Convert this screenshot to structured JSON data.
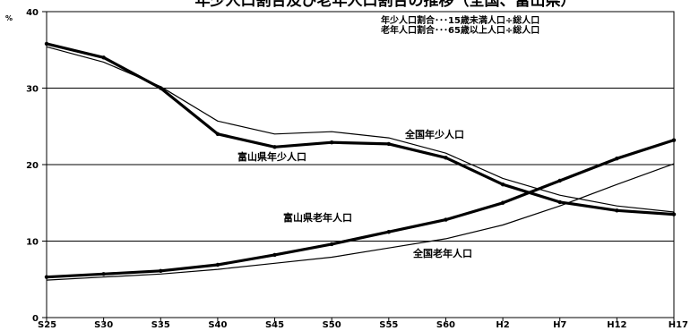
{
  "chart_data": {
    "type": "line",
    "title": "年少人口割合及び老年人口割合の推移（全国、富山県）",
    "y_unit": "%",
    "ylim": [
      0,
      40
    ],
    "yticks": [
      0,
      10,
      20,
      30,
      40
    ],
    "categories": [
      "S25",
      "S30",
      "S35",
      "S40",
      "S45",
      "S50",
      "S55",
      "S60",
      "H2",
      "H7",
      "H12",
      "H17"
    ],
    "grid": true,
    "legend_notes": [
      "年少人口割合･･･15歳未満人口÷総人口",
      "老年人口割合･･･65歳以上人口÷総人口"
    ],
    "series": [
      {
        "name": "富山県年少人口",
        "values": [
          35.8,
          34.0,
          30.0,
          24.0,
          22.3,
          22.9,
          22.7,
          20.9,
          17.4,
          15.1,
          14.0,
          13.5
        ]
      },
      {
        "name": "全国年少人口",
        "values": [
          35.4,
          33.4,
          30.2,
          25.7,
          24.0,
          24.3,
          23.5,
          21.5,
          18.2,
          16.0,
          14.6,
          13.8
        ]
      },
      {
        "name": "富山県老年人口",
        "values": [
          5.3,
          5.7,
          6.1,
          6.9,
          8.2,
          9.6,
          11.2,
          12.8,
          15.0,
          17.9,
          20.8,
          23.2
        ]
      },
      {
        "name": "全国老年人口",
        "values": [
          4.9,
          5.3,
          5.7,
          6.3,
          7.1,
          7.9,
          9.1,
          10.3,
          12.1,
          14.6,
          17.4,
          20.1
        ]
      }
    ]
  }
}
